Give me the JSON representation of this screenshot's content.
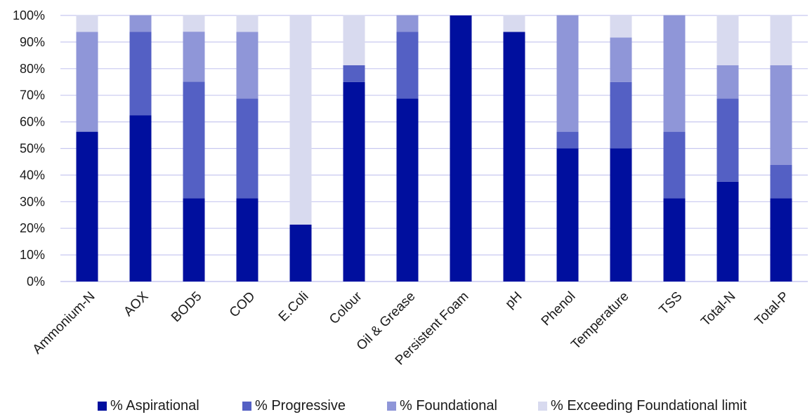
{
  "chart_data": {
    "type": "bar",
    "stacked": true,
    "percent": true,
    "title": "",
    "xlabel": "",
    "ylabel": "",
    "ylim": [
      0,
      100
    ],
    "yticks": [
      "0%",
      "10%",
      "20%",
      "30%",
      "40%",
      "50%",
      "60%",
      "70%",
      "80%",
      "90%",
      "100%"
    ],
    "grid": true,
    "legend_position": "bottom",
    "categories": [
      "Ammonium-N",
      "AOX",
      "BOD5",
      "COD",
      "E.Coli",
      "Colour",
      "Oil & Grease",
      "Persistent Foam",
      "pH",
      "Phenol",
      "Temperature",
      "TSS",
      "Total-N",
      "Total-P"
    ],
    "series": [
      {
        "name": "% Aspirational",
        "color": "#000f9e",
        "values": [
          56.3,
          62.5,
          31.3,
          31.3,
          21.4,
          75.0,
          68.8,
          100.0,
          93.8,
          50.0,
          50.0,
          31.3,
          37.5,
          31.3
        ]
      },
      {
        "name": "% Progressive",
        "color": "#5460c4",
        "values": [
          0.0,
          31.3,
          43.8,
          37.5,
          0.0,
          6.3,
          25.0,
          0.0,
          0.0,
          6.3,
          25.0,
          25.0,
          31.3,
          12.5
        ]
      },
      {
        "name": "% Foundational",
        "color": "#8f96d8",
        "values": [
          37.5,
          6.3,
          18.8,
          25.0,
          0.0,
          0.0,
          6.3,
          0.0,
          0.0,
          43.8,
          16.7,
          43.8,
          12.5,
          37.5
        ]
      },
      {
        "name": "% Exceeding Foundational limit",
        "color": "#d8daef",
        "values": [
          6.3,
          0.0,
          6.3,
          6.3,
          78.6,
          18.8,
          0.0,
          0.0,
          6.3,
          0.0,
          8.3,
          0.0,
          18.8,
          18.8
        ]
      }
    ],
    "colors": {
      "grid": "#c8c8f0",
      "axis": "#c8c8f0"
    }
  }
}
